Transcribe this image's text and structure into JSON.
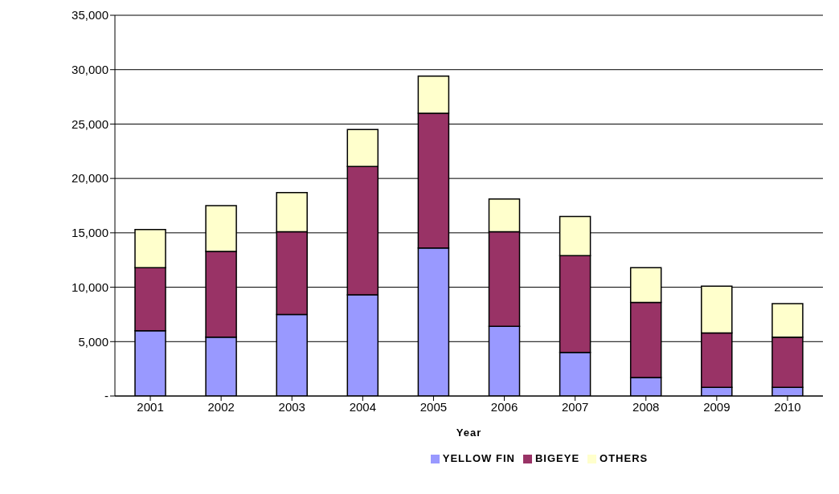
{
  "chart_data": {
    "type": "bar",
    "stacked": true,
    "xlabel": "Year",
    "categories": [
      "2001",
      "2002",
      "2003",
      "2004",
      "2005",
      "2006",
      "2007",
      "2008",
      "2009",
      "2010"
    ],
    "series": [
      {
        "name": "YELLOW FIN",
        "color": "#9999ff",
        "values": [
          6000,
          5400,
          7500,
          9300,
          13600,
          6400,
          4000,
          1700,
          800,
          800
        ]
      },
      {
        "name": "BIGEYE",
        "color": "#993366",
        "values": [
          5800,
          7900,
          7600,
          11800,
          12400,
          8700,
          8900,
          6900,
          5000,
          4600
        ]
      },
      {
        "name": "OTHERS",
        "color": "#ffffcc",
        "values": [
          3500,
          4200,
          3600,
          3400,
          3400,
          3000,
          3600,
          3200,
          4300,
          3100
        ]
      }
    ],
    "ylim": [
      0,
      35000
    ],
    "yticks": [
      {
        "value": 0,
        "label": "-"
      },
      {
        "value": 5000,
        "label": "5,000"
      },
      {
        "value": 10000,
        "label": "10,000"
      },
      {
        "value": 15000,
        "label": "15,000"
      },
      {
        "value": 20000,
        "label": "20,000"
      },
      {
        "value": 25000,
        "label": "25,000"
      },
      {
        "value": 30000,
        "label": "30,000"
      },
      {
        "value": 35000,
        "label": "35,000"
      }
    ],
    "grid": "y",
    "legend": "bottom"
  }
}
